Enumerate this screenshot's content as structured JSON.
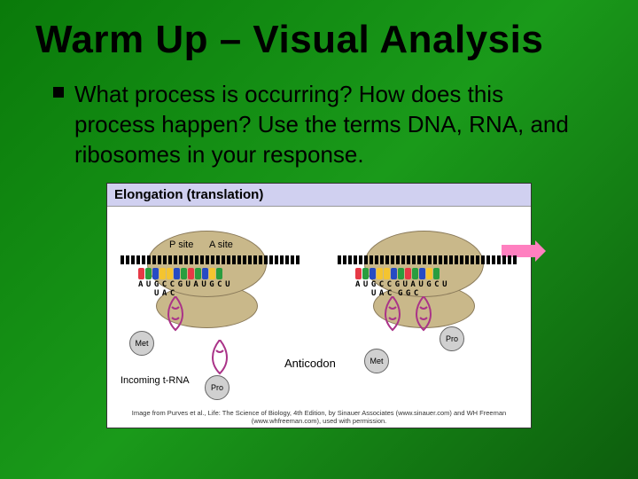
{
  "slide": {
    "title": "Warm Up – Visual Analysis",
    "bullet_text": "What process is occurring? How does this process happen? Use the terms DNA, RNA, and ribosomes in your response."
  },
  "diagram": {
    "type": "infographic",
    "title": "Elongation (translation)",
    "background_color": "#ffffff",
    "header_bg": "#d0d0f0",
    "ribosome_color": "#c9b88a",
    "ribosome_border": "#8a7a5a",
    "arrow_color": "#ff80c0",
    "trna_color": "#aa3388",
    "site_labels": {
      "p": "P site",
      "a": "A site"
    },
    "codon_sequence": "AUGCCGUAUGCU",
    "anticodon_left": "UAC",
    "anticodon_right_p": "UAC",
    "anticodon_right_a": "GGC",
    "nucleotide_colors": {
      "A": "#e63946",
      "U": "#2a9d3f",
      "G": "#264bc4",
      "C": "#f4c430"
    },
    "amino_acids": {
      "met": "Met",
      "pro": "Pro"
    },
    "labels": {
      "anticodon": "Anticodon",
      "incoming": "Incoming t-RNA"
    },
    "attribution": "Image from Purves et al., Life: The Science of Biology, 4th Edition, by Sinauer Associates (www.sinauer.com) and WH Freeman (www.whfreeman.com), used with permission."
  },
  "colors": {
    "slide_bg_start": "#0a7a0a",
    "slide_bg_end": "#0d5d0d",
    "title_color": "#000000",
    "body_text_color": "#000000"
  },
  "typography": {
    "title_font": "Impact",
    "title_size_pt": 34,
    "body_font": "Arial",
    "body_size_pt": 20
  }
}
